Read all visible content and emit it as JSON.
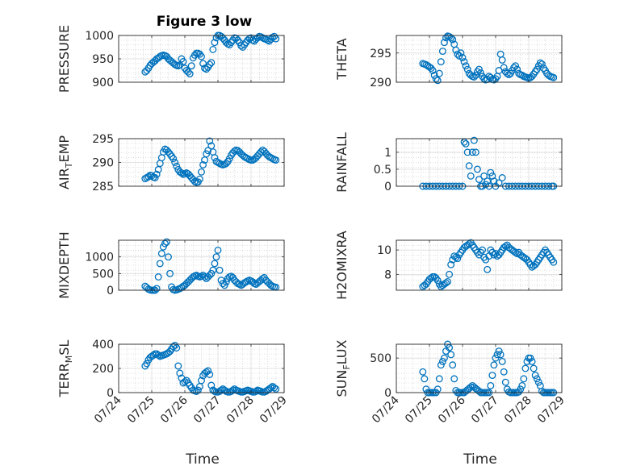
{
  "figure": {
    "title": "Figure 3 low",
    "xlabel": "Time",
    "xticks": [
      "07/24",
      "07/25",
      "07/26",
      "07/27",
      "07/28",
      "07/29"
    ]
  },
  "chart_data": [
    {
      "type": "scatter",
      "name": "pressure",
      "ylabel_main": "PRESSURE",
      "x_range": [
        0,
        5
      ],
      "ylim": [
        900,
        1000
      ],
      "yticks": [
        900,
        950,
        1000
      ],
      "grid": true,
      "color": "#0072BD",
      "x": [
        0.8,
        0.85,
        0.9,
        0.95,
        1.0,
        1.05,
        1.1,
        1.15,
        1.2,
        1.25,
        1.3,
        1.35,
        1.4,
        1.45,
        1.5,
        1.55,
        1.6,
        1.65,
        1.7,
        1.75,
        1.8,
        1.85,
        1.9,
        1.95,
        2.0,
        2.05,
        2.1,
        2.15,
        2.2,
        2.25,
        2.3,
        2.35,
        2.4,
        2.45,
        2.5,
        2.55,
        2.6,
        2.65,
        2.7,
        2.75,
        2.8,
        2.85,
        2.9,
        2.95,
        3.0,
        3.05,
        3.1,
        3.15,
        3.2,
        3.25,
        3.3,
        3.35,
        3.4,
        3.45,
        3.5,
        3.55,
        3.6,
        3.65,
        3.7,
        3.75,
        3.8,
        3.85,
        3.9,
        3.95,
        4.0,
        4.05,
        4.1,
        4.15,
        4.2,
        4.25,
        4.3,
        4.35,
        4.4,
        4.45,
        4.5,
        4.55,
        4.6,
        4.65,
        4.7,
        4.75
      ],
      "y": [
        922,
        925,
        930,
        936,
        940,
        943,
        946,
        950,
        952,
        955,
        957,
        958,
        957,
        955,
        950,
        947,
        944,
        941,
        938,
        936,
        935,
        937,
        950,
        944,
        930,
        925,
        922,
        918,
        935,
        952,
        958,
        962,
        962,
        960,
        955,
        940,
        930,
        928,
        932,
        938,
        942,
        970,
        985,
        995,
        1000,
        1000,
        998,
        994,
        990,
        985,
        982,
        980,
        985,
        990,
        995,
        994,
        990,
        985,
        978,
        975,
        980,
        985,
        990,
        993,
        995,
        990,
        988,
        992,
        995,
        998,
        997,
        995,
        993,
        992,
        990,
        988,
        992,
        996,
        998,
        993
      ]
    },
    {
      "type": "scatter",
      "name": "theta",
      "ylabel_main": "THETA",
      "x_range": [
        0,
        5
      ],
      "ylim": [
        290,
        298
      ],
      "yticks": [
        290,
        295
      ],
      "grid": true,
      "color": "#0072BD",
      "x": [
        0.8,
        0.85,
        0.9,
        0.95,
        1.0,
        1.05,
        1.1,
        1.15,
        1.2,
        1.25,
        1.3,
        1.35,
        1.4,
        1.45,
        1.5,
        1.55,
        1.6,
        1.65,
        1.7,
        1.75,
        1.8,
        1.85,
        1.9,
        1.95,
        2.0,
        2.05,
        2.1,
        2.15,
        2.2,
        2.25,
        2.3,
        2.35,
        2.4,
        2.45,
        2.5,
        2.55,
        2.6,
        2.65,
        2.7,
        2.75,
        2.8,
        2.85,
        2.9,
        2.95,
        3.0,
        3.05,
        3.1,
        3.15,
        3.2,
        3.25,
        3.3,
        3.35,
        3.4,
        3.45,
        3.5,
        3.55,
        3.6,
        3.65,
        3.7,
        3.75,
        3.8,
        3.85,
        3.9,
        3.95,
        4.0,
        4.05,
        4.1,
        4.15,
        4.2,
        4.25,
        4.3,
        4.35,
        4.4,
        4.45,
        4.5,
        4.55,
        4.6,
        4.65,
        4.7,
        4.75
      ],
      "y": [
        293.2,
        293.1,
        293.0,
        292.8,
        292.6,
        292.4,
        292.0,
        291.2,
        290.6,
        290.3,
        291.5,
        293.5,
        295.3,
        296.8,
        297.6,
        297.9,
        297.8,
        297.6,
        297.3,
        296.5,
        295.5,
        294.8,
        294.5,
        295.0,
        294.2,
        293.5,
        292.8,
        292.2,
        291.5,
        291.2,
        291.0,
        290.9,
        291.2,
        291.8,
        292.2,
        291.6,
        291.0,
        290.6,
        290.4,
        290.5,
        291.0,
        290.8,
        290.5,
        290.4,
        290.6,
        291.0,
        292.0,
        294.8,
        293.8,
        292.5,
        291.8,
        291.5,
        291.3,
        291.5,
        292.0,
        292.5,
        292.8,
        292.2,
        291.5,
        291.3,
        291.2,
        291.0,
        290.9,
        290.8,
        290.7,
        290.8,
        291.0,
        291.4,
        291.8,
        292.2,
        292.8,
        293.3,
        293.1,
        292.4,
        292.0,
        291.5,
        291.2,
        291.0,
        290.9,
        290.8
      ]
    },
    {
      "type": "scatter",
      "name": "air_temp",
      "ylabel_main": "AIR",
      "ylabel_sub": "T",
      "ylabel_rest": "EMP",
      "x_range": [
        0,
        5
      ],
      "ylim": [
        285,
        295
      ],
      "yticks": [
        285,
        290,
        295
      ],
      "grid": true,
      "color": "#0072BD",
      "x": [
        0.8,
        0.85,
        0.9,
        0.95,
        1.0,
        1.05,
        1.1,
        1.15,
        1.2,
        1.25,
        1.3,
        1.35,
        1.4,
        1.45,
        1.5,
        1.55,
        1.6,
        1.65,
        1.7,
        1.75,
        1.8,
        1.85,
        1.9,
        1.95,
        2.0,
        2.05,
        2.1,
        2.15,
        2.2,
        2.25,
        2.3,
        2.35,
        2.4,
        2.45,
        2.5,
        2.55,
        2.6,
        2.65,
        2.7,
        2.75,
        2.8,
        2.85,
        2.9,
        2.95,
        3.0,
        3.05,
        3.1,
        3.15,
        3.2,
        3.25,
        3.3,
        3.35,
        3.4,
        3.45,
        3.5,
        3.55,
        3.6,
        3.65,
        3.7,
        3.75,
        3.8,
        3.85,
        3.9,
        3.95,
        4.0,
        4.05,
        4.1,
        4.15,
        4.2,
        4.25,
        4.3,
        4.35,
        4.4,
        4.45,
        4.5,
        4.55,
        4.6,
        4.65,
        4.7,
        4.75
      ],
      "y": [
        286.6,
        286.8,
        287.0,
        287.3,
        287.2,
        286.9,
        286.8,
        287.5,
        288.5,
        289.8,
        291.0,
        292.2,
        292.8,
        292.6,
        292.2,
        291.8,
        291.3,
        290.8,
        290.0,
        289.2,
        288.5,
        288.0,
        287.8,
        287.5,
        287.6,
        287.8,
        287.6,
        287.2,
        286.8,
        286.4,
        286.0,
        285.8,
        285.9,
        286.5,
        288.0,
        289.5,
        290.5,
        291.8,
        292.5,
        294.5,
        293.5,
        292.2,
        291.0,
        290.2,
        290.0,
        289.8,
        289.6,
        289.5,
        289.6,
        289.8,
        290.2,
        290.8,
        291.5,
        292.0,
        292.4,
        292.6,
        292.5,
        292.2,
        291.8,
        291.5,
        291.2,
        291.0,
        290.8,
        290.6,
        290.5,
        290.5,
        290.7,
        291.0,
        291.4,
        291.8,
        292.2,
        292.6,
        292.3,
        291.9,
        291.5,
        291.2,
        291.0,
        290.8,
        290.6,
        290.5
      ]
    },
    {
      "type": "scatter",
      "name": "rainfall",
      "ylabel_main": "RAINFALL",
      "x_range": [
        0,
        5
      ],
      "ylim": [
        0,
        1.4
      ],
      "yticks": [
        0,
        0.5,
        1
      ],
      "ytick_labels": [
        "0",
        "0.5",
        "1"
      ],
      "grid": true,
      "color": "#0072BD",
      "x": [
        0.8,
        0.9,
        1.0,
        1.1,
        1.2,
        1.3,
        1.4,
        1.5,
        1.6,
        1.7,
        1.8,
        1.9,
        2.0,
        2.05,
        2.1,
        2.15,
        2.2,
        2.25,
        2.3,
        2.35,
        2.4,
        2.45,
        2.5,
        2.55,
        2.6,
        2.65,
        2.7,
        2.75,
        2.8,
        2.85,
        2.9,
        2.95,
        3.0,
        3.1,
        3.2,
        3.3,
        3.4,
        3.5,
        3.6,
        3.7,
        3.8,
        3.9,
        4.0,
        4.1,
        4.2,
        4.3,
        4.4,
        4.5,
        4.6,
        4.7,
        4.75
      ],
      "y": [
        0,
        0,
        0,
        0,
        0,
        0,
        0,
        0,
        0,
        0,
        0,
        0,
        0,
        1.3,
        1.25,
        1.0,
        0.6,
        0.3,
        1.0,
        1.35,
        1.0,
        0.5,
        0.2,
        0.0,
        0.0,
        0.3,
        0.05,
        0.15,
        0.0,
        0.4,
        0.3,
        0.15,
        0.0,
        0.1,
        0.25,
        0,
        0,
        0,
        0,
        0,
        0,
        0,
        0,
        0,
        0,
        0,
        0,
        0,
        0,
        0,
        0
      ]
    },
    {
      "type": "scatter",
      "name": "mixdepth",
      "ylabel_main": "MIXDEPTH",
      "x_range": [
        0,
        5
      ],
      "ylim": [
        0,
        1500
      ],
      "yticks": [
        0,
        500,
        1000
      ],
      "grid": true,
      "color": "#0072BD",
      "x": [
        0.8,
        0.85,
        0.9,
        0.95,
        1.0,
        1.05,
        1.1,
        1.15,
        1.2,
        1.25,
        1.3,
        1.35,
        1.4,
        1.45,
        1.5,
        1.55,
        1.6,
        1.65,
        1.7,
        1.75,
        1.8,
        1.85,
        1.9,
        1.95,
        2.0,
        2.05,
        2.1,
        2.15,
        2.2,
        2.25,
        2.3,
        2.35,
        2.4,
        2.45,
        2.5,
        2.55,
        2.6,
        2.65,
        2.7,
        2.75,
        2.8,
        2.85,
        2.9,
        2.95,
        3.0,
        3.05,
        3.1,
        3.15,
        3.2,
        3.25,
        3.3,
        3.35,
        3.4,
        3.45,
        3.5,
        3.55,
        3.6,
        3.65,
        3.7,
        3.75,
        3.8,
        3.85,
        3.9,
        3.95,
        4.0,
        4.05,
        4.1,
        4.15,
        4.2,
        4.25,
        4.3,
        4.35,
        4.4,
        4.45,
        4.5,
        4.55,
        4.6,
        4.65,
        4.7,
        4.75
      ],
      "y": [
        120,
        80,
        30,
        10,
        0,
        0,
        0,
        50,
        400,
        800,
        1100,
        1300,
        1400,
        1450,
        1000,
        500,
        100,
        20,
        0,
        10,
        30,
        50,
        80,
        120,
        150,
        200,
        250,
        300,
        350,
        400,
        430,
        450,
        420,
        400,
        420,
        450,
        400,
        350,
        400,
        450,
        500,
        600,
        800,
        1000,
        1200,
        600,
        300,
        200,
        150,
        250,
        350,
        400,
        420,
        380,
        300,
        250,
        200,
        180,
        150,
        180,
        220,
        250,
        280,
        300,
        280,
        250,
        200,
        180,
        220,
        260,
        300,
        350,
        380,
        300,
        250,
        200,
        150,
        120,
        100,
        90
      ]
    },
    {
      "type": "scatter",
      "name": "h2omixra",
      "ylabel_main": "H2OMIXRA",
      "x_range": [
        0,
        5
      ],
      "ylim": [
        6.7,
        10.8
      ],
      "yticks": [
        8,
        10
      ],
      "grid": true,
      "color": "#0072BD",
      "x": [
        0.8,
        0.85,
        0.9,
        0.95,
        1.0,
        1.05,
        1.1,
        1.15,
        1.2,
        1.25,
        1.3,
        1.35,
        1.4,
        1.45,
        1.5,
        1.55,
        1.6,
        1.65,
        1.7,
        1.75,
        1.8,
        1.85,
        1.9,
        1.95,
        2.0,
        2.05,
        2.1,
        2.15,
        2.2,
        2.25,
        2.3,
        2.35,
        2.4,
        2.45,
        2.5,
        2.55,
        2.6,
        2.65,
        2.7,
        2.75,
        2.8,
        2.85,
        2.9,
        2.95,
        3.0,
        3.05,
        3.1,
        3.15,
        3.2,
        3.25,
        3.3,
        3.35,
        3.4,
        3.45,
        3.5,
        3.55,
        3.6,
        3.65,
        3.7,
        3.75,
        3.8,
        3.85,
        3.9,
        3.95,
        4.0,
        4.05,
        4.1,
        4.15,
        4.2,
        4.25,
        4.3,
        4.35,
        4.4,
        4.45,
        4.5,
        4.55,
        4.6,
        4.65,
        4.7,
        4.75
      ],
      "y": [
        7.0,
        7.1,
        7.2,
        7.4,
        7.6,
        7.7,
        7.8,
        7.8,
        7.7,
        7.5,
        7.2,
        7.0,
        7.1,
        7.2,
        7.3,
        7.4,
        8.0,
        8.8,
        9.2,
        9.5,
        9.4,
        9.3,
        9.6,
        9.8,
        10.0,
        10.2,
        10.3,
        10.4,
        10.5,
        10.6,
        10.4,
        10.2,
        10.0,
        9.8,
        9.6,
        9.8,
        10.0,
        9.4,
        9.2,
        8.4,
        9.5,
        10.0,
        9.8,
        9.6,
        9.7,
        9.5,
        9.6,
        9.8,
        10.0,
        10.2,
        10.3,
        10.4,
        10.2,
        10.1,
        10.0,
        9.9,
        9.8,
        9.7,
        9.8,
        9.6,
        9.5,
        9.4,
        9.3,
        9.2,
        9.0,
        8.8,
        8.6,
        8.7,
        8.8,
        9.0,
        9.2,
        9.4,
        9.6,
        9.8,
        10.0,
        9.8,
        9.6,
        9.4,
        9.2,
        9.0
      ]
    },
    {
      "type": "scatter",
      "name": "terr_msl",
      "ylabel_main": "TERR",
      "ylabel_sub": "M",
      "ylabel_rest": "SL",
      "x_range": [
        0,
        5
      ],
      "ylim": [
        0,
        400
      ],
      "yticks": [
        0,
        200,
        400
      ],
      "grid": true,
      "color": "#0072BD",
      "x": [
        0.8,
        0.85,
        0.9,
        0.95,
        1.0,
        1.05,
        1.1,
        1.15,
        1.2,
        1.25,
        1.3,
        1.35,
        1.4,
        1.45,
        1.5,
        1.55,
        1.6,
        1.65,
        1.7,
        1.75,
        1.8,
        1.85,
        1.9,
        1.95,
        2.0,
        2.05,
        2.1,
        2.15,
        2.2,
        2.25,
        2.3,
        2.35,
        2.4,
        2.45,
        2.5,
        2.55,
        2.6,
        2.65,
        2.7,
        2.75,
        2.8,
        2.85,
        2.9,
        2.95,
        3.0,
        3.05,
        3.1,
        3.15,
        3.2,
        3.25,
        3.3,
        3.35,
        3.4,
        3.45,
        3.5,
        3.55,
        3.6,
        3.65,
        3.7,
        3.75,
        3.8,
        3.85,
        3.9,
        3.95,
        4.0,
        4.05,
        4.1,
        4.15,
        4.2,
        4.25,
        4.3,
        4.35,
        4.4,
        4.45,
        4.5,
        4.55,
        4.6,
        4.65,
        4.7,
        4.75
      ],
      "y": [
        220,
        240,
        270,
        290,
        300,
        310,
        320,
        320,
        310,
        300,
        305,
        310,
        315,
        320,
        330,
        340,
        360,
        380,
        390,
        370,
        220,
        160,
        120,
        80,
        90,
        100,
        80,
        60,
        40,
        20,
        15,
        10,
        20,
        50,
        100,
        140,
        160,
        170,
        180,
        150,
        60,
        20,
        10,
        5,
        5,
        10,
        20,
        30,
        20,
        10,
        5,
        5,
        10,
        20,
        30,
        20,
        15,
        10,
        5,
        5,
        10,
        15,
        20,
        15,
        10,
        5,
        5,
        10,
        20,
        15,
        10,
        5,
        5,
        10,
        20,
        30,
        40,
        50,
        40,
        30
      ]
    },
    {
      "type": "scatter",
      "name": "sun_flux",
      "ylabel_main": "SUN",
      "ylabel_sub": "F",
      "ylabel_rest": "LUX",
      "x_range": [
        0,
        5
      ],
      "ylim": [
        0,
        700
      ],
      "yticks": [
        0,
        500
      ],
      "grid": true,
      "color": "#0072BD",
      "x": [
        0.8,
        0.85,
        0.9,
        0.95,
        1.0,
        1.05,
        1.1,
        1.15,
        1.2,
        1.25,
        1.3,
        1.35,
        1.4,
        1.45,
        1.5,
        1.55,
        1.6,
        1.65,
        1.7,
        1.75,
        1.8,
        1.85,
        1.9,
        1.95,
        2.0,
        2.05,
        2.1,
        2.15,
        2.2,
        2.25,
        2.3,
        2.35,
        2.4,
        2.45,
        2.5,
        2.55,
        2.6,
        2.65,
        2.7,
        2.75,
        2.8,
        2.85,
        2.9,
        2.95,
        3.0,
        3.05,
        3.1,
        3.15,
        3.2,
        3.25,
        3.3,
        3.35,
        3.4,
        3.45,
        3.5,
        3.55,
        3.6,
        3.65,
        3.7,
        3.75,
        3.8,
        3.85,
        3.9,
        3.95,
        4.0,
        4.05,
        4.1,
        4.15,
        4.2,
        4.25,
        4.3,
        4.35,
        4.4,
        4.45,
        4.5,
        4.55,
        4.6,
        4.65,
        4.7,
        4.75
      ],
      "y": [
        300,
        200,
        50,
        0,
        0,
        0,
        0,
        0,
        0,
        50,
        200,
        400,
        450,
        500,
        600,
        700,
        650,
        550,
        400,
        200,
        30,
        0,
        0,
        0,
        0,
        0,
        20,
        40,
        60,
        80,
        100,
        80,
        60,
        40,
        20,
        0,
        0,
        0,
        0,
        0,
        0,
        100,
        250,
        400,
        500,
        550,
        600,
        550,
        450,
        300,
        150,
        50,
        10,
        0,
        0,
        0,
        0,
        0,
        10,
        50,
        100,
        200,
        350,
        450,
        500,
        500,
        450,
        350,
        250,
        200,
        150,
        100,
        20,
        0,
        0,
        0,
        0,
        0,
        0,
        0
      ]
    }
  ]
}
